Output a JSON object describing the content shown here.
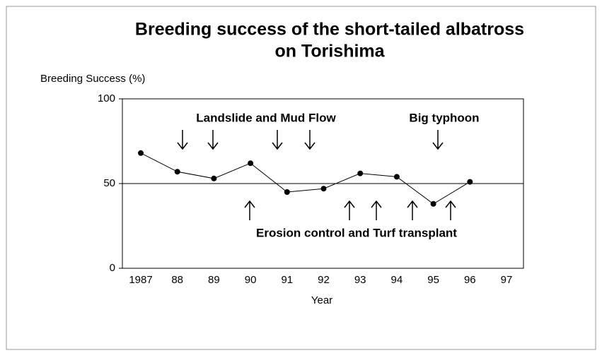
{
  "chart_data": {
    "type": "line",
    "title": [
      "Breeding success of the short-tailed albatross",
      "on Torishima"
    ],
    "ylabel": "Breeding Success (%)",
    "xlabel": "Year",
    "categories": [
      "1987",
      "88",
      "89",
      "90",
      "91",
      "92",
      "93",
      "94",
      "95",
      "96",
      "97"
    ],
    "series": [
      {
        "name": "Breeding success",
        "color": "#000000",
        "values": [
          68,
          57,
          53,
          62,
          45,
          47,
          56,
          54,
          38,
          51,
          null
        ]
      }
    ],
    "ylim": [
      0,
      100
    ],
    "yticks": [
      0,
      50,
      100
    ],
    "grid": true,
    "annotations": [
      "Landslide and Mud Flow",
      "Big typhoon",
      "Erosion control and Turf transplant"
    ]
  }
}
